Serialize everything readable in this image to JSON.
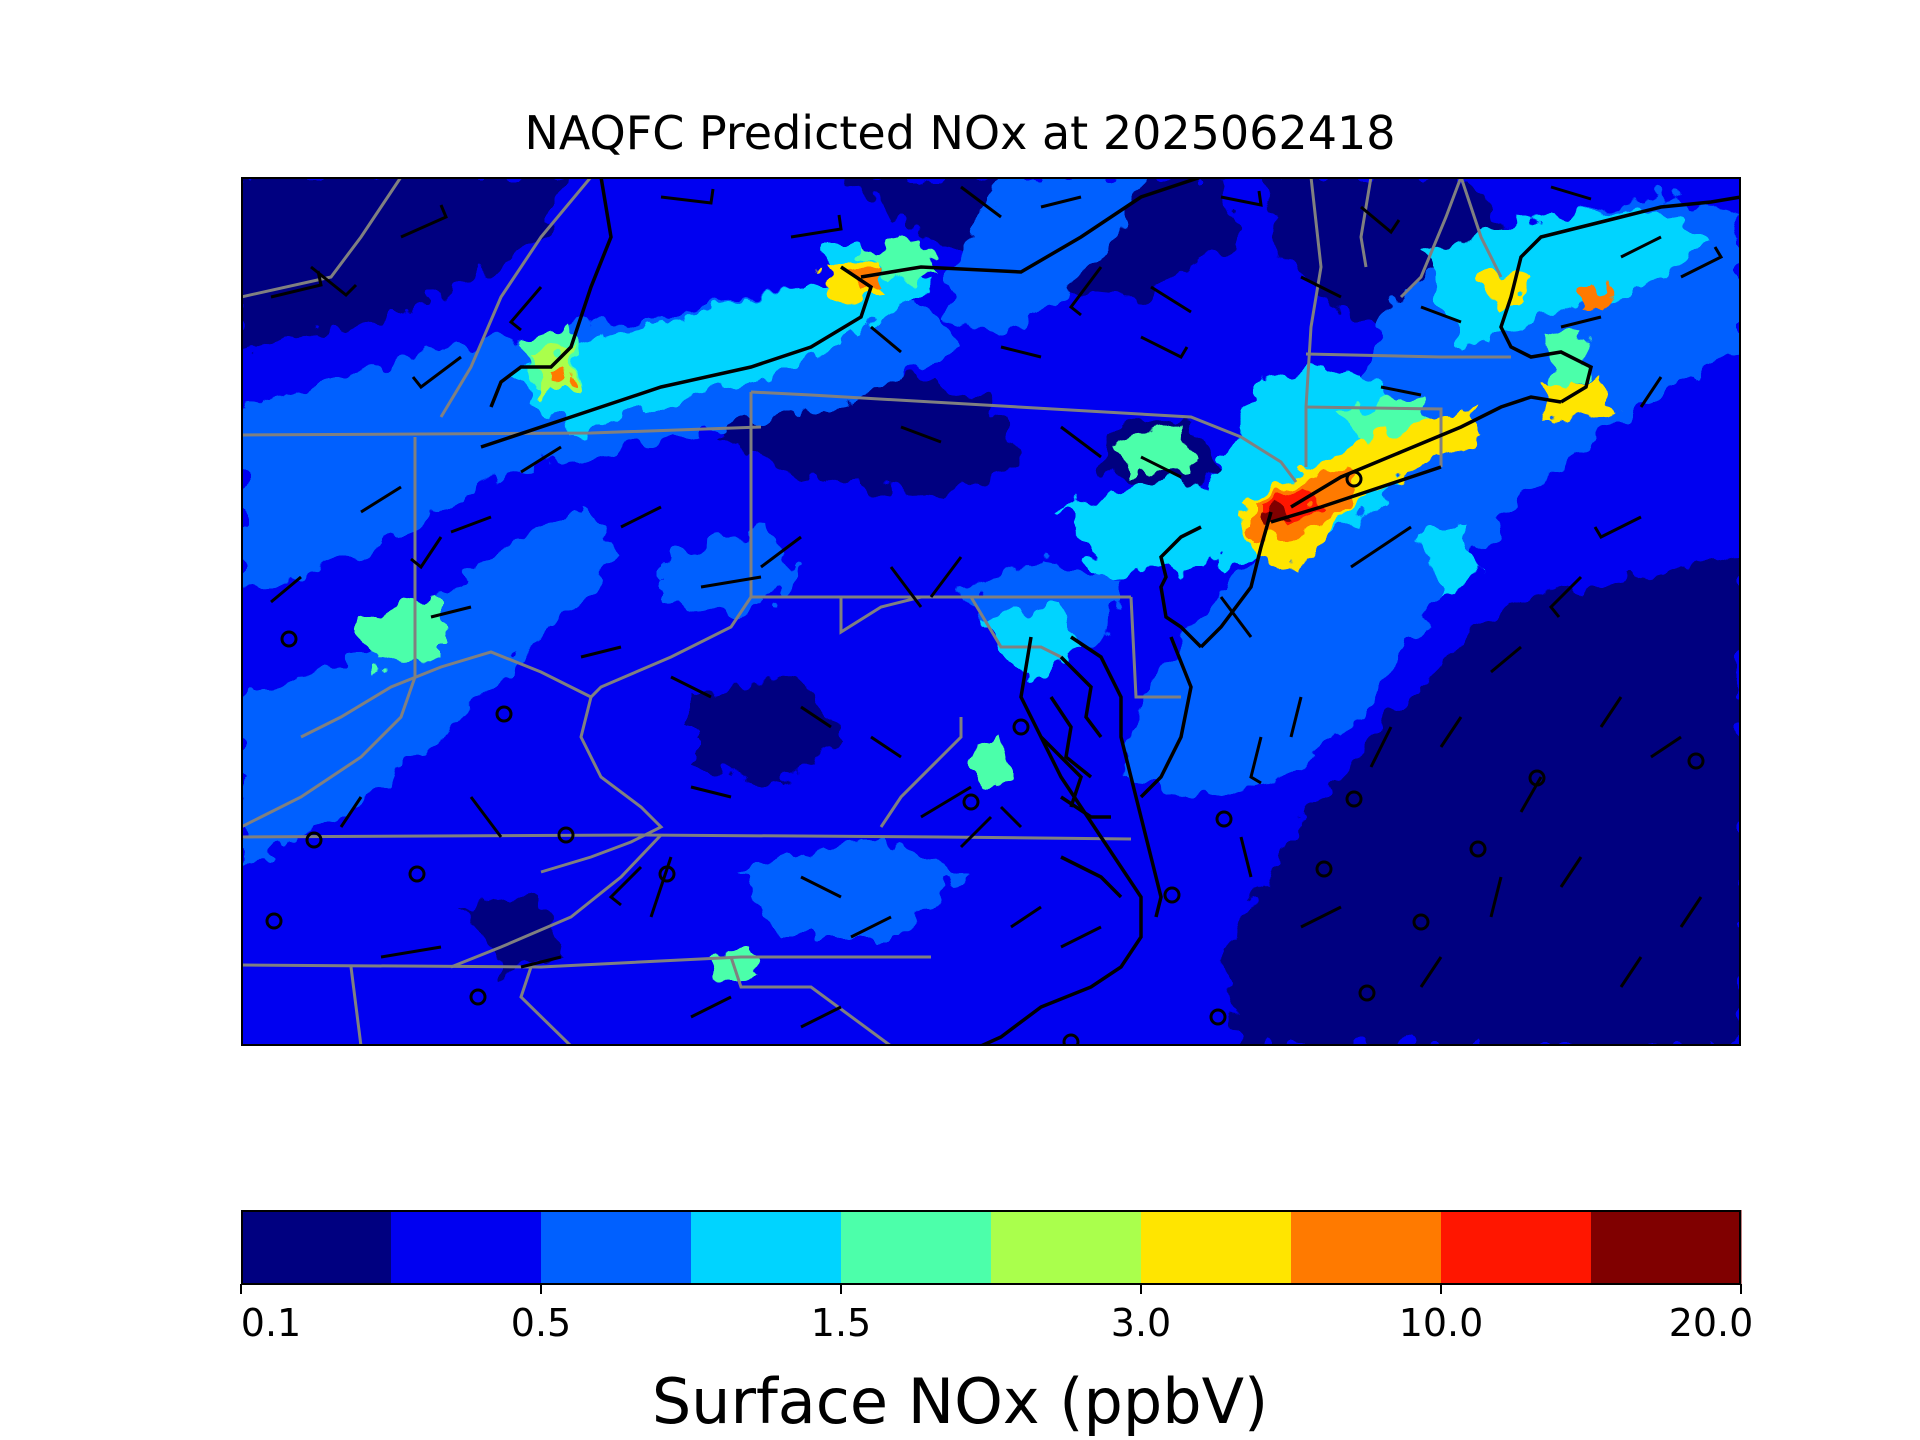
{
  "title": "NAQFC Predicted NOx at 2025062418",
  "colorbar": {
    "label": "Surface NOx (ppbV)",
    "colors": [
      "#000080",
      "#0000f1",
      "#0060ff",
      "#00d4ff",
      "#4cffaa",
      "#aaff4c",
      "#ffe500",
      "#ff7a00",
      "#ff1600",
      "#800000"
    ],
    "tick_labels": [
      "0.1",
      "0.5",
      "1.5",
      "3.0",
      "10.0",
      "20.0"
    ]
  },
  "chart_data": {
    "type": "heatmap",
    "title": "NAQFC Predicted NOx at 2025062418",
    "colorbar_label": "Surface NOx (ppbV)",
    "colorbar_ticks": [
      "0.1",
      "0.5",
      "1.5",
      "3.0",
      "10.0",
      "20.0"
    ],
    "colorbar_levels": 10,
    "overlays": [
      "state-borders",
      "coastlines",
      "wind-barbs",
      "calm-wind-circles"
    ]
  }
}
